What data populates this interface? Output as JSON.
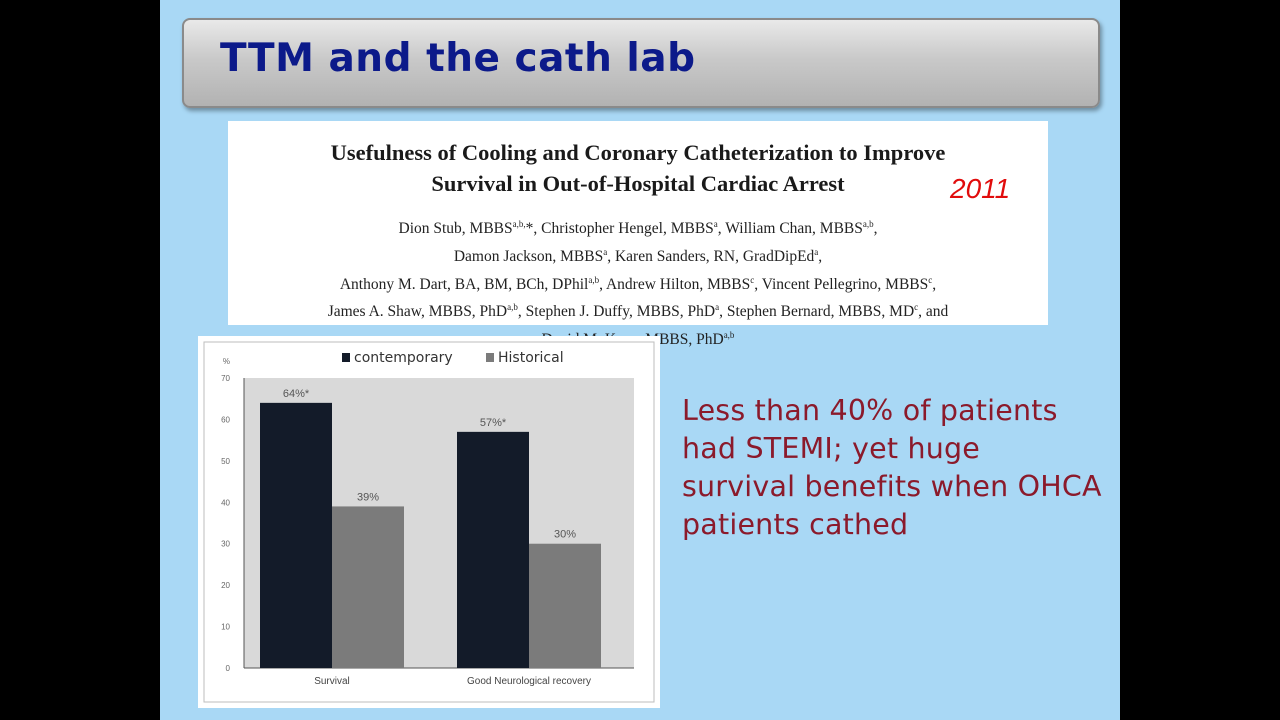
{
  "slide": {
    "title": "TTM and the cath lab"
  },
  "paper": {
    "title_line1": "Usefulness of Cooling and Coronary Catheterization to Improve",
    "title_line2": "Survival in Out-of-Hospital Cardiac Arrest",
    "year": "2011",
    "authors": [
      [
        {
          "t": "Dion Stub, MBBS"
        },
        {
          "s": "a,b,"
        },
        {
          "t": "*, Christopher Hengel, MBBS"
        },
        {
          "s": "a"
        },
        {
          "t": ", William Chan, MBBS"
        },
        {
          "s": "a,b"
        },
        {
          "t": ","
        }
      ],
      [
        {
          "t": "Damon Jackson, MBBS"
        },
        {
          "s": "a"
        },
        {
          "t": ", Karen Sanders, RN, GradDipEd"
        },
        {
          "s": "a"
        },
        {
          "t": ","
        }
      ],
      [
        {
          "t": "Anthony M. Dart, BA, BM, BCh, DPhil"
        },
        {
          "s": "a,b"
        },
        {
          "t": ", Andrew Hilton, MBBS"
        },
        {
          "s": "c"
        },
        {
          "t": ", Vincent Pellegrino, MBBS"
        },
        {
          "s": "c"
        },
        {
          "t": ","
        }
      ],
      [
        {
          "t": "James A. Shaw, MBBS, PhD"
        },
        {
          "s": "a,b"
        },
        {
          "t": ", Stephen J. Duffy, MBBS, PhD"
        },
        {
          "s": "a"
        },
        {
          "t": ", Stephen Bernard, MBBS, MD"
        },
        {
          "s": "c"
        },
        {
          "t": ", and"
        }
      ],
      [
        {
          "t": "David M. Kaye, MBBS, PhD"
        },
        {
          "s": "a,b"
        }
      ]
    ]
  },
  "note": {
    "text": "Less than 40% of patients had STEMI; yet huge survival benefits when OHCA patients cathed"
  },
  "chart_data": {
    "type": "bar",
    "categories": [
      "Survival",
      "Good Neurological recovery"
    ],
    "series": [
      {
        "name": "contemporary",
        "values": [
          64,
          57
        ],
        "labels": [
          "64%*",
          "57%*"
        ],
        "color": "#131b29"
      },
      {
        "name": "Historical",
        "values": [
          39,
          30
        ],
        "labels": [
          "39%",
          "30%"
        ],
        "color": "#7b7b7b"
      }
    ],
    "yticks": [
      0,
      10,
      20,
      30,
      40,
      50,
      60,
      70
    ],
    "ylim": [
      0,
      70
    ],
    "ylabel": "%",
    "legend_position": "top",
    "plot_background": "#d9d9d9"
  }
}
